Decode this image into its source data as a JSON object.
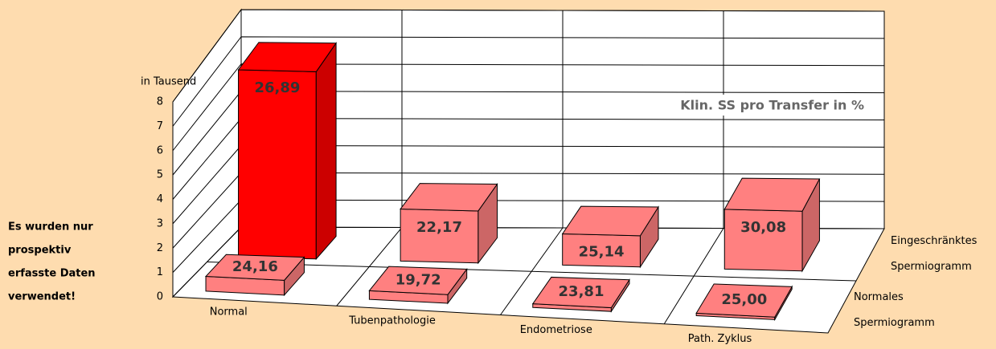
{
  "chart_data": {
    "type": "bar3d",
    "annotation": "Klin. SS pro Transfer in %",
    "ylabel": "in Tausend",
    "note": [
      "Es wurden nur",
      "prospektiv",
      "erfasste Daten",
      "verwendet!"
    ],
    "categories": [
      "Normal",
      "Tubenpathologie",
      "Endometriose",
      "Path. Zyklus"
    ],
    "series": [
      {
        "name": "Normales Spermiogramm",
        "color": "#ff8080",
        "values": [
          0.6,
          0.35,
          0.15,
          0.1
        ],
        "labels": [
          "24,16",
          "19,72",
          "23,81",
          "25,00"
        ]
      },
      {
        "name": "Eingeschränktes Spermiogramm",
        "color": "#ff8080",
        "colors": [
          "#ff0000",
          "#ff8080",
          "#ff8080",
          "#ff8080"
        ],
        "values": [
          7.2,
          2.0,
          1.2,
          2.3
        ],
        "labels": [
          "26,89",
          "22,17",
          "25,14",
          "30,08"
        ]
      }
    ],
    "ylim": [
      0,
      8
    ],
    "yticks": [
      0,
      1,
      2,
      3,
      4,
      5,
      6,
      7,
      8
    ],
    "grid": true
  }
}
